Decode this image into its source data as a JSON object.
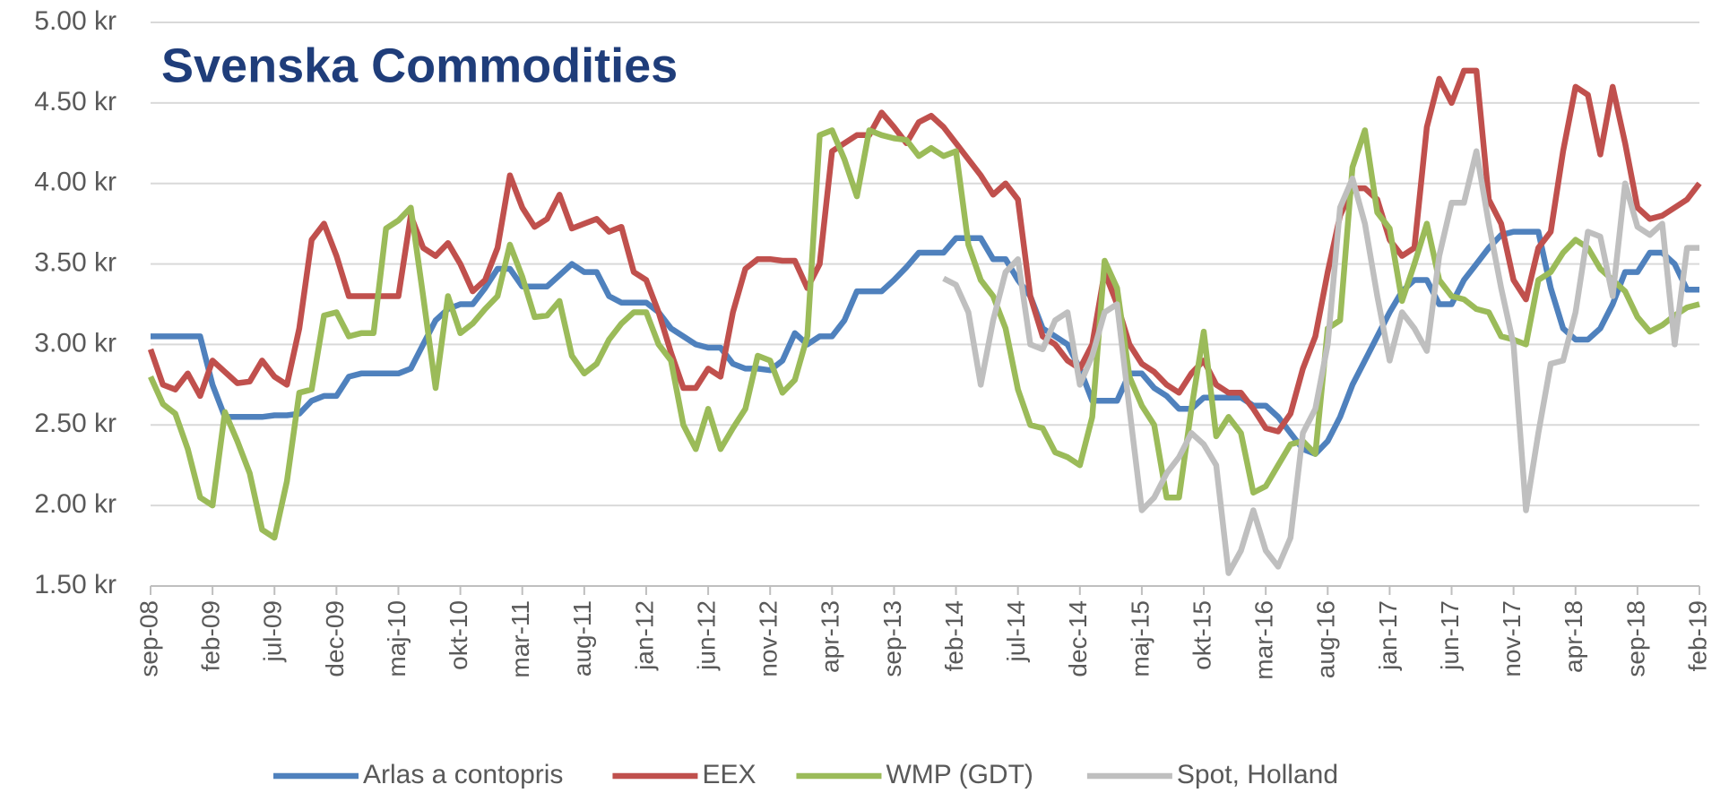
{
  "chart_data": {
    "type": "line",
    "title": "Svenska Commodities",
    "categories": [
      "sep-08",
      null,
      null,
      null,
      null,
      "feb-09",
      null,
      null,
      null,
      null,
      "jul-09",
      null,
      null,
      null,
      null,
      "dec-09",
      null,
      null,
      null,
      null,
      "maj-10",
      null,
      null,
      null,
      null,
      "okt-10",
      null,
      null,
      null,
      null,
      "mar-11",
      null,
      null,
      null,
      null,
      "aug-11",
      null,
      null,
      null,
      null,
      "jan-12",
      null,
      null,
      null,
      null,
      "jun-12",
      null,
      null,
      null,
      null,
      "nov-12",
      null,
      null,
      null,
      null,
      "apr-13",
      null,
      null,
      null,
      null,
      "sep-13",
      null,
      null,
      null,
      null,
      "feb-14",
      null,
      null,
      null,
      null,
      "jul-14",
      null,
      null,
      null,
      null,
      "dec-14",
      null,
      null,
      null,
      null,
      "maj-15",
      null,
      null,
      null,
      null,
      "okt-15",
      null,
      null,
      null,
      null,
      "mar-16",
      null,
      null,
      null,
      null,
      "aug-16",
      null,
      null,
      null,
      null,
      "jan-17",
      null,
      null,
      null,
      null,
      "jun-17",
      null,
      null,
      null,
      null,
      "nov-17",
      null,
      null,
      null,
      null,
      "apr-18",
      null,
      null,
      null,
      null,
      "sep-18",
      null,
      null,
      null,
      null,
      "feb-19"
    ],
    "series": [
      {
        "name": "Arlas a contopris",
        "color": "#4f81bd",
        "values": [
          3.05,
          3.05,
          3.05,
          3.05,
          3.05,
          2.75,
          2.55,
          2.55,
          2.55,
          2.55,
          2.56,
          2.56,
          2.57,
          2.65,
          2.68,
          2.68,
          2.8,
          2.82,
          2.82,
          2.82,
          2.82,
          2.85,
          3.0,
          3.15,
          3.22,
          3.25,
          3.25,
          3.35,
          3.47,
          3.47,
          3.36,
          3.36,
          3.36,
          3.43,
          3.5,
          3.45,
          3.45,
          3.3,
          3.26,
          3.26,
          3.26,
          3.2,
          3.1,
          3.05,
          3.0,
          2.98,
          2.98,
          2.88,
          2.85,
          2.85,
          2.84,
          2.9,
          3.07,
          3.0,
          3.05,
          3.05,
          3.15,
          3.33,
          3.33,
          3.33,
          3.4,
          3.48,
          3.57,
          3.57,
          3.57,
          3.66,
          3.66,
          3.66,
          3.53,
          3.53,
          3.4,
          3.3,
          3.1,
          3.05,
          3.0,
          2.85,
          2.65,
          2.65,
          2.65,
          2.82,
          2.82,
          2.73,
          2.68,
          2.6,
          2.6,
          2.67,
          2.67,
          2.67,
          2.67,
          2.62,
          2.62,
          2.55,
          2.45,
          2.35,
          2.32,
          2.4,
          2.55,
          2.75,
          2.9,
          3.05,
          3.2,
          3.33,
          3.4,
          3.4,
          3.25,
          3.25,
          3.4,
          3.5,
          3.6,
          3.68,
          3.7,
          3.7,
          3.7,
          3.35,
          3.1,
          3.03,
          3.03,
          3.1,
          3.25,
          3.45,
          3.45,
          3.57,
          3.57,
          3.5,
          3.34,
          3.34
        ]
      },
      {
        "name": "EEX",
        "color": "#c0504d",
        "values": [
          2.97,
          2.75,
          2.72,
          2.82,
          2.68,
          2.9,
          2.83,
          2.76,
          2.77,
          2.9,
          2.8,
          2.75,
          3.1,
          3.65,
          3.75,
          3.55,
          3.3,
          3.3,
          3.3,
          3.3,
          3.3,
          3.8,
          3.6,
          3.55,
          3.63,
          3.5,
          3.33,
          3.4,
          3.6,
          4.05,
          3.85,
          3.73,
          3.78,
          3.93,
          3.72,
          3.75,
          3.78,
          3.7,
          3.73,
          3.45,
          3.4,
          3.2,
          2.95,
          2.73,
          2.73,
          2.85,
          2.8,
          3.2,
          3.47,
          3.53,
          3.53,
          3.52,
          3.52,
          3.35,
          3.5,
          4.2,
          4.25,
          4.3,
          4.3,
          4.44,
          4.35,
          4.25,
          4.38,
          4.42,
          4.35,
          4.25,
          4.15,
          4.05,
          3.93,
          4.0,
          3.9,
          3.3,
          3.05,
          3.0,
          2.9,
          2.85,
          3.0,
          3.45,
          3.25,
          3.0,
          2.88,
          2.83,
          2.75,
          2.7,
          2.82,
          2.9,
          2.75,
          2.7,
          2.7,
          2.6,
          2.48,
          2.46,
          2.57,
          2.85,
          3.05,
          3.45,
          3.8,
          3.97,
          3.97,
          3.9,
          3.65,
          3.55,
          3.6,
          4.35,
          4.65,
          4.5,
          4.7,
          4.7,
          3.9,
          3.75,
          3.4,
          3.28,
          3.6,
          3.7,
          4.2,
          4.6,
          4.55,
          4.18,
          4.6,
          4.25,
          3.85,
          3.78,
          3.8,
          3.85,
          3.9,
          4.0
        ]
      },
      {
        "name": "WMP (GDT)",
        "color": "#9bbb59",
        "values": [
          2.8,
          2.63,
          2.57,
          2.35,
          2.05,
          2.0,
          2.58,
          2.4,
          2.2,
          1.85,
          1.8,
          2.15,
          2.7,
          2.72,
          3.18,
          3.2,
          3.05,
          3.07,
          3.07,
          3.72,
          3.77,
          3.85,
          3.3,
          2.73,
          3.3,
          3.07,
          3.13,
          3.22,
          3.3,
          3.62,
          3.42,
          3.17,
          3.18,
          3.27,
          2.93,
          2.82,
          2.88,
          3.03,
          3.13,
          3.2,
          3.2,
          3.0,
          2.9,
          2.5,
          2.35,
          2.6,
          2.35,
          2.48,
          2.6,
          2.93,
          2.9,
          2.7,
          2.78,
          3.05,
          4.3,
          4.33,
          4.15,
          3.92,
          4.33,
          4.3,
          4.28,
          4.27,
          4.17,
          4.22,
          4.17,
          4.2,
          3.62,
          3.4,
          3.3,
          3.1,
          2.72,
          2.5,
          2.48,
          2.33,
          2.3,
          2.25,
          2.55,
          3.52,
          3.35,
          2.8,
          2.62,
          2.5,
          2.05,
          2.05,
          2.6,
          3.08,
          2.43,
          2.55,
          2.45,
          2.08,
          2.12,
          2.25,
          2.38,
          2.4,
          2.32,
          3.1,
          3.15,
          4.1,
          4.33,
          3.82,
          3.72,
          3.27,
          3.5,
          3.75,
          3.4,
          3.3,
          3.28,
          3.22,
          3.2,
          3.05,
          3.03,
          3.0,
          3.4,
          3.45,
          3.57,
          3.65,
          3.6,
          3.47,
          3.4,
          3.33,
          3.17,
          3.08,
          3.12,
          3.18,
          3.23,
          3.25
        ]
      },
      {
        "name": "Spot, Holland",
        "color": "#bfbfbf",
        "values": [
          null,
          null,
          null,
          null,
          null,
          null,
          null,
          null,
          null,
          null,
          null,
          null,
          null,
          null,
          null,
          null,
          null,
          null,
          null,
          null,
          null,
          null,
          null,
          null,
          null,
          null,
          null,
          null,
          null,
          null,
          null,
          null,
          null,
          null,
          null,
          null,
          null,
          null,
          null,
          null,
          null,
          null,
          null,
          null,
          null,
          null,
          null,
          null,
          null,
          null,
          null,
          null,
          null,
          null,
          null,
          null,
          null,
          null,
          null,
          null,
          null,
          null,
          null,
          null,
          3.41,
          3.37,
          3.2,
          2.75,
          3.15,
          3.45,
          3.53,
          3.0,
          2.97,
          3.15,
          3.2,
          2.75,
          2.93,
          3.2,
          3.25,
          2.6,
          1.97,
          2.05,
          2.2,
          2.3,
          2.45,
          2.38,
          2.25,
          1.58,
          1.72,
          1.97,
          1.72,
          1.62,
          1.8,
          2.45,
          2.6,
          3.0,
          3.85,
          4.03,
          3.75,
          3.3,
          2.9,
          3.2,
          3.1,
          2.96,
          3.55,
          3.88,
          3.88,
          4.2,
          3.75,
          3.35,
          3.0,
          1.97,
          2.45,
          2.88,
          2.9,
          3.2,
          3.7,
          3.67,
          3.3,
          4.0,
          3.73,
          3.68,
          3.75,
          3.0,
          3.6,
          3.6
        ]
      }
    ],
    "ylim": [
      1.5,
      5.0
    ],
    "yticks": [
      {
        "value": 1.5,
        "label": "1.50 kr"
      },
      {
        "value": 2.0,
        "label": "2.00 kr"
      },
      {
        "value": 2.5,
        "label": "2.50 kr"
      },
      {
        "value": 3.0,
        "label": "3.00 kr"
      },
      {
        "value": 3.5,
        "label": "3.50 kr"
      },
      {
        "value": 4.0,
        "label": "4.00 kr"
      },
      {
        "value": 4.5,
        "label": "4.50 kr"
      },
      {
        "value": 5.0,
        "label": "5.00 kr"
      }
    ],
    "grid": true,
    "legend": "bottom"
  }
}
